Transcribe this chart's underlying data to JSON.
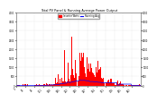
{
  "title": "Total PV Panel & Running Average Power Output",
  "bg_color": "#ffffff",
  "plot_bg_color": "#ffffff",
  "bar_color": "#ff0000",
  "avg_color": "#0000ff",
  "legend_pv": "Inverter Watts",
  "legend_avg": "Running Avg",
  "ylim_left": [
    0,
    4000
  ],
  "ylim_right": [
    0,
    4000
  ],
  "yticks": [
    0,
    500,
    1000,
    1500,
    2000,
    2500,
    3000,
    3500,
    4000
  ],
  "n_points": 520,
  "grid_color": "#cccccc",
  "spike_indices": [
    200,
    215,
    230,
    245,
    255,
    265,
    270,
    280,
    295,
    310
  ],
  "spike_heights": [
    2800,
    1800,
    3800,
    1500,
    3200,
    2600,
    1900,
    2200,
    1400,
    1200
  ]
}
